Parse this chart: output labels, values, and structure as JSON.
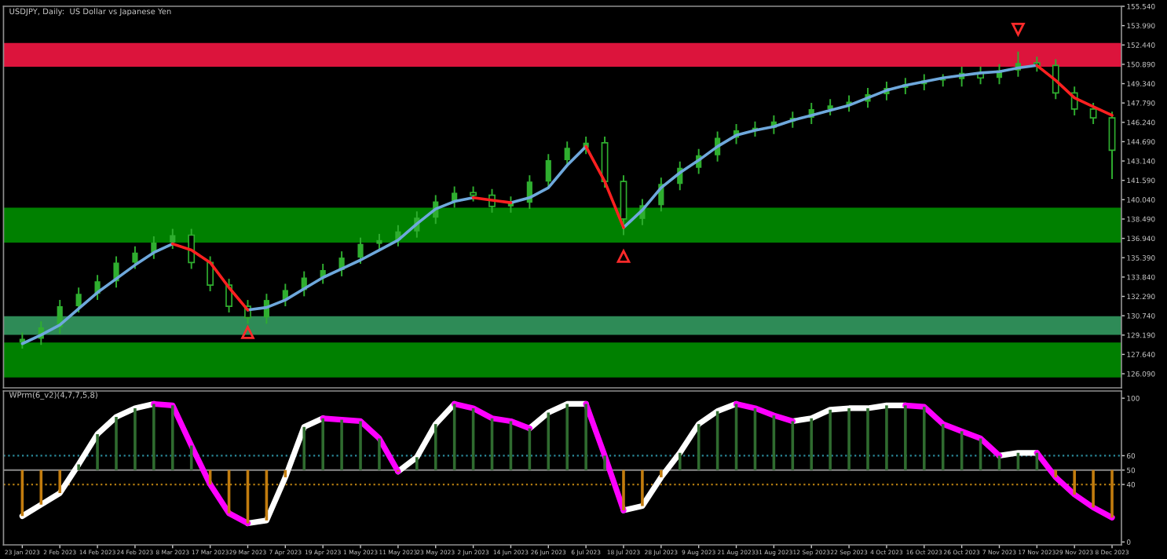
{
  "chart_data": [
    {
      "type": "candlestick",
      "title": "USDJPY, Daily:  US Dollar vs Japanese Yen",
      "color": "#2fae2f",
      "categories": [
        null,
        null,
        null,
        null,
        null,
        null,
        null,
        null,
        null,
        null,
        null,
        null,
        null,
        null,
        null,
        null,
        null,
        null,
        null,
        null,
        null,
        null,
        null,
        null,
        null,
        null,
        null,
        null,
        null,
        null,
        null,
        null,
        null,
        null,
        null,
        null,
        null,
        null,
        null,
        null,
        null,
        null,
        null,
        null,
        null,
        null,
        null,
        null,
        null,
        null,
        null,
        null,
        null,
        null,
        null,
        null,
        null,
        null,
        null
      ],
      "ohlc": [
        [
          128.6,
          129.4,
          128.1,
          128.9
        ],
        [
          128.9,
          130.3,
          128.4,
          129.8
        ],
        [
          129.8,
          132.0,
          129.3,
          131.5
        ],
        [
          131.5,
          133.0,
          131.0,
          132.5
        ],
        [
          132.5,
          134.0,
          132.0,
          133.5
        ],
        [
          133.5,
          135.5,
          133.0,
          135.0
        ],
        [
          135.0,
          136.3,
          134.5,
          135.8
        ],
        [
          135.8,
          137.1,
          135.3,
          136.6
        ],
        [
          136.6,
          137.7,
          136.1,
          137.2
        ],
        [
          137.2,
          137.7,
          134.5,
          135.0
        ],
        [
          135.0,
          135.5,
          132.7,
          133.2
        ],
        [
          133.2,
          133.7,
          131.0,
          131.5
        ],
        [
          131.5,
          132.0,
          130.1,
          130.6
        ],
        [
          130.6,
          132.5,
          130.1,
          132.0
        ],
        [
          132.0,
          133.3,
          131.5,
          132.8
        ],
        [
          132.8,
          134.3,
          132.3,
          133.8
        ],
        [
          133.8,
          134.9,
          133.3,
          134.4
        ],
        [
          134.4,
          135.9,
          133.9,
          135.4
        ],
        [
          135.4,
          137.0,
          134.9,
          136.5
        ],
        [
          136.5,
          137.3,
          136.0,
          136.8
        ],
        [
          136.8,
          138.0,
          136.3,
          137.5
        ],
        [
          137.5,
          139.1,
          137.0,
          138.6
        ],
        [
          138.6,
          140.4,
          138.1,
          139.9
        ],
        [
          139.9,
          141.1,
          139.4,
          140.6
        ],
        [
          140.6,
          141.1,
          139.9,
          140.4
        ],
        [
          140.4,
          140.9,
          139.0,
          139.5
        ],
        [
          139.5,
          140.3,
          139.0,
          139.8
        ],
        [
          139.8,
          142.0,
          139.3,
          141.5
        ],
        [
          141.5,
          143.7,
          141.0,
          143.2
        ],
        [
          143.2,
          144.7,
          142.7,
          144.2
        ],
        [
          144.2,
          145.1,
          143.7,
          144.6
        ],
        [
          144.6,
          145.1,
          141.0,
          141.5
        ],
        [
          141.5,
          142.0,
          137.2,
          138.5
        ],
        [
          138.5,
          140.1,
          138.0,
          139.6
        ],
        [
          139.6,
          141.8,
          139.1,
          141.3
        ],
        [
          141.3,
          143.1,
          140.8,
          142.6
        ],
        [
          142.6,
          144.1,
          142.1,
          143.6
        ],
        [
          143.6,
          145.5,
          143.1,
          145.0
        ],
        [
          145.0,
          146.1,
          144.5,
          145.6
        ],
        [
          145.6,
          146.3,
          145.1,
          145.8
        ],
        [
          145.8,
          146.8,
          145.3,
          146.3
        ],
        [
          146.3,
          147.1,
          145.8,
          146.6
        ],
        [
          146.6,
          147.8,
          146.1,
          147.3
        ],
        [
          147.3,
          148.1,
          146.8,
          147.6
        ],
        [
          147.6,
          148.4,
          147.1,
          147.9
        ],
        [
          147.9,
          149.0,
          147.4,
          148.5
        ],
        [
          148.5,
          149.5,
          148.0,
          149.0
        ],
        [
          149.0,
          149.8,
          148.5,
          149.3
        ],
        [
          149.3,
          150.1,
          148.8,
          149.6
        ],
        [
          149.6,
          150.1,
          149.1,
          149.7
        ],
        [
          149.7,
          150.7,
          149.1,
          150.2
        ],
        [
          150.2,
          150.7,
          149.3,
          149.8
        ],
        [
          149.8,
          150.9,
          149.3,
          150.4
        ],
        [
          150.4,
          151.9,
          149.9,
          151.0
        ],
        [
          151.0,
          151.5,
          150.3,
          150.8
        ],
        [
          150.8,
          151.3,
          148.1,
          148.6
        ],
        [
          148.6,
          149.1,
          146.8,
          147.3
        ],
        [
          147.3,
          147.8,
          146.1,
          146.6
        ],
        [
          146.6,
          147.1,
          141.7,
          144.0
        ]
      ],
      "series": [
        {
          "type": "line",
          "color": "#6ea8dc",
          "values": [
            128.5,
            129.2,
            130.0,
            131.3,
            132.6,
            133.7,
            134.8,
            135.8,
            136.5,
            null,
            null,
            null,
            131.2,
            131.4,
            132.0,
            132.9,
            133.8,
            134.5,
            135.2,
            136.0,
            136.8,
            138.1,
            139.3,
            139.9,
            140.2,
            null,
            139.8,
            140.2,
            141.0,
            142.8,
            144.3,
            null,
            137.8,
            139.2,
            141.0,
            142.2,
            143.2,
            144.3,
            145.2,
            145.6,
            145.9,
            146.4,
            146.8,
            147.2,
            147.6,
            148.2,
            148.8,
            149.2,
            149.5,
            149.8,
            150.0,
            150.2,
            150.3,
            150.6,
            150.8,
            null,
            null,
            null,
            null
          ]
        },
        {
          "type": "line",
          "color": "#ff2020",
          "values": [
            null,
            null,
            null,
            null,
            null,
            null,
            null,
            null,
            136.5,
            136.0,
            135.0,
            133.0,
            131.2,
            null,
            null,
            null,
            null,
            null,
            null,
            null,
            null,
            null,
            null,
            null,
            140.2,
            140.0,
            139.8,
            null,
            null,
            null,
            144.3,
            141.5,
            137.8,
            null,
            null,
            null,
            null,
            null,
            null,
            null,
            null,
            null,
            null,
            null,
            null,
            null,
            null,
            null,
            null,
            null,
            null,
            null,
            null,
            null,
            150.8,
            149.6,
            148.2,
            147.5,
            146.8
          ]
        },
        {
          "type": "scatter",
          "marker": "triangle",
          "color": "#ff2a2a",
          "values": [
            null,
            null,
            null,
            null,
            null,
            null,
            null,
            null,
            null,
            null,
            null,
            null,
            129.4,
            null,
            null,
            null,
            null,
            null,
            null,
            null,
            null,
            null,
            null,
            null,
            null,
            null,
            null,
            null,
            null,
            null,
            null,
            null,
            135.5,
            null,
            null,
            null,
            null,
            null,
            null,
            null,
            null,
            null,
            null,
            null,
            null,
            null,
            null,
            null,
            null,
            null,
            null,
            null,
            null,
            153.7,
            null,
            null,
            null,
            null,
            null
          ]
        }
      ],
      "bands": [
        {
          "axis": "y",
          "from": 150.7,
          "to": 152.6,
          "color": "#dc143c"
        },
        {
          "axis": "y",
          "from": 136.6,
          "to": 139.4,
          "color": "#008000"
        },
        {
          "axis": "y",
          "from": 129.2,
          "to": 130.7,
          "color": "#2e8b57"
        },
        {
          "axis": "y",
          "from": 125.8,
          "to": 128.6,
          "color": "#008000"
        }
      ],
      "ylim": [
        124.96,
        155.54
      ],
      "yticks": [
        {
          "value": 126.09,
          "label": "126.090"
        },
        {
          "value": 127.64,
          "label": "127.640"
        },
        {
          "value": 129.19,
          "label": "129.190"
        },
        {
          "value": 130.74,
          "label": "130.740"
        },
        {
          "value": 132.29,
          "label": "132.290"
        },
        {
          "value": 133.84,
          "label": "133.840"
        },
        {
          "value": 135.39,
          "label": "135.390"
        },
        {
          "value": 136.94,
          "label": "136.940"
        },
        {
          "value": 138.49,
          "label": "138.490"
        },
        {
          "value": 140.04,
          "label": "140.040"
        },
        {
          "value": 141.59,
          "label": "141.590"
        },
        {
          "value": 143.14,
          "label": "143.140"
        },
        {
          "value": 144.69,
          "label": "144.690"
        },
        {
          "value": 146.24,
          "label": "146.240"
        },
        {
          "value": 147.79,
          "label": "147.790"
        },
        {
          "value": 149.34,
          "label": "149.340"
        },
        {
          "value": 150.89,
          "label": "150.890"
        },
        {
          "value": 152.44,
          "label": "152.440"
        },
        {
          "value": 153.99,
          "label": "153.990"
        },
        {
          "value": 155.54,
          "label": "155.540"
        }
      ],
      "tick_labels": "y"
    },
    {
      "type": "bar",
      "title": "WPrm(6_v2)(4,7,7,5,8)",
      "categories": [
        "23 Jan 2023",
        null,
        "2 Feb 2023",
        null,
        "14 Feb 2023",
        null,
        "24 Feb 2023",
        null,
        "8 Mar 2023",
        null,
        "17 Mar 2023",
        null,
        "29 Mar 2023",
        null,
        "7 Apr 2023",
        null,
        "19 Apr 2023",
        null,
        "1 May 2023",
        null,
        "11 May 2023",
        null,
        "23 May 2023",
        null,
        "2 Jun 2023",
        null,
        "14 Jun 2023",
        null,
        "26 Jun 2023",
        null,
        "6 Jul 2023",
        null,
        "18 Jul 2023",
        null,
        "28 Jul 2023",
        null,
        "9 Aug 2023",
        null,
        "21 Aug 2023",
        null,
        "31 Aug 2023",
        null,
        "12 Sep 2023",
        null,
        "22 Sep 2023",
        null,
        "4 Oct 2023",
        null,
        "16 Oct 2023",
        null,
        "26 Oct 2023",
        null,
        "7 Nov 2023",
        null,
        "17 Nov 2023",
        null,
        "29 Nov 2023",
        null,
        "8 Dec 2023"
      ],
      "series": [
        {
          "type": "bar",
          "base": [
            50,
            50,
            50,
            50,
            50,
            50,
            50,
            50,
            50,
            50,
            50,
            50,
            50,
            50,
            50,
            50,
            50,
            50,
            50,
            50,
            50,
            50,
            50,
            50,
            50,
            50,
            50,
            50,
            50,
            50,
            50,
            50,
            50,
            50,
            50,
            50,
            50,
            50,
            50,
            50,
            50,
            50,
            50,
            50,
            50,
            50,
            50,
            50,
            50,
            50,
            50,
            50,
            50,
            50,
            50,
            50,
            50,
            50,
            50
          ],
          "values": [
            -32,
            -24,
            -16,
            4,
            25,
            37,
            43,
            46,
            45,
            17,
            -10,
            -30,
            -37,
            -35,
            -5,
            30,
            36,
            35,
            34,
            22,
            -1,
            9,
            32,
            46,
            43,
            36,
            34,
            29,
            40,
            46,
            46,
            10,
            -28,
            -25,
            -5,
            12,
            32,
            41,
            46,
            43,
            38,
            34,
            36,
            42,
            43,
            43,
            45,
            45,
            44,
            32,
            27,
            22,
            10,
            12,
            12,
            -5,
            -17,
            -26,
            -33
          ],
          "colors": [
            "#c27c0e",
            "#c27c0e",
            "#c27c0e",
            "#2f6b2f",
            "#2f6b2f",
            "#2f6b2f",
            "#2f6b2f",
            "#2f6b2f",
            "#2f6b2f",
            "#2f6b2f",
            "#c27c0e",
            "#c27c0e",
            "#c27c0e",
            "#c27c0e",
            "#c27c0e",
            "#2f6b2f",
            "#2f6b2f",
            "#2f6b2f",
            "#2f6b2f",
            "#2f6b2f",
            "#c27c0e",
            "#2f6b2f",
            "#2f6b2f",
            "#2f6b2f",
            "#2f6b2f",
            "#2f6b2f",
            "#2f6b2f",
            "#2f6b2f",
            "#2f6b2f",
            "#2f6b2f",
            "#2f6b2f",
            "#2f6b2f",
            "#c27c0e",
            "#c27c0e",
            "#c27c0e",
            "#2f6b2f",
            "#2f6b2f",
            "#2f6b2f",
            "#2f6b2f",
            "#2f6b2f",
            "#2f6b2f",
            "#2f6b2f",
            "#2f6b2f",
            "#2f6b2f",
            "#2f6b2f",
            "#2f6b2f",
            "#2f6b2f",
            "#2f6b2f",
            "#2f6b2f",
            "#2f6b2f",
            "#2f6b2f",
            "#2f6b2f",
            "#2f6b2f",
            "#2f6b2f",
            "#2f6b2f",
            "#c27c0e",
            "#c27c0e",
            "#c27c0e",
            "#c27c0e"
          ]
        },
        {
          "type": "line",
          "color": "#ffffff",
          "values": [
            18,
            26,
            34,
            54,
            75,
            87,
            93,
            96,
            null,
            null,
            null,
            null,
            13,
            15,
            45,
            80,
            86,
            null,
            null,
            null,
            49,
            59,
            82,
            96,
            null,
            null,
            null,
            79,
            90,
            96,
            96,
            null,
            22,
            25,
            45,
            62,
            82,
            91,
            96,
            null,
            null,
            84,
            86,
            92,
            93,
            93,
            95,
            95,
            null,
            null,
            null,
            null,
            60,
            62,
            62,
            null,
            null,
            null,
            null
          ]
        },
        {
          "type": "line",
          "color": "#ff00ff",
          "values": [
            null,
            null,
            null,
            null,
            null,
            null,
            null,
            96,
            95,
            67,
            40,
            20,
            13,
            null,
            null,
            null,
            86,
            85,
            84,
            72,
            49,
            null,
            null,
            96,
            93,
            86,
            84,
            79,
            null,
            null,
            96,
            60,
            22,
            null,
            null,
            null,
            null,
            null,
            96,
            93,
            88,
            84,
            null,
            null,
            null,
            null,
            null,
            95,
            94,
            82,
            77,
            72,
            60,
            null,
            62,
            45,
            33,
            24,
            17
          ]
        }
      ],
      "ref_lines": [
        {
          "axis": "y",
          "value": 60,
          "color": "#2a8a9a",
          "line_style": "dotted"
        },
        {
          "axis": "y",
          "value": 50,
          "color": "#8a8a8a",
          "line_style": "solid"
        },
        {
          "axis": "y",
          "value": 40,
          "color": "#b07a10",
          "line_style": "dotted"
        }
      ],
      "ylim": [
        -2,
        105
      ],
      "yticks": [
        0,
        40,
        50,
        60,
        100
      ]
    }
  ]
}
